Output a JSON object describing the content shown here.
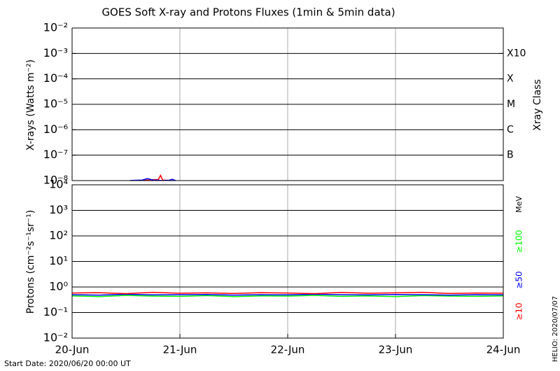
{
  "chart_data": [
    {
      "type": "line",
      "title": "GOES Soft X-ray and Protons Fluxes   (1min & 5min data)",
      "ylabel": "X-rays (Watts m⁻²)",
      "y2label": "Xray Class",
      "log_y": true,
      "grid": true,
      "ylim": [
        1e-08,
        0.01
      ],
      "yticks": [
        {
          "value": 1e-08,
          "label": "10⁻⁸"
        },
        {
          "value": 1e-07,
          "label": "10⁻⁷"
        },
        {
          "value": 1e-06,
          "label": "10⁻⁶"
        },
        {
          "value": 1e-05,
          "label": "10⁻⁵"
        },
        {
          "value": 0.0001,
          "label": "10⁻⁴"
        },
        {
          "value": 0.001,
          "label": "10⁻³"
        },
        {
          "value": 0.01,
          "label": "10⁻²"
        }
      ],
      "class_ticks": [
        {
          "value": 1e-07,
          "label": "B"
        },
        {
          "value": 1e-06,
          "label": "C"
        },
        {
          "value": 1e-05,
          "label": "M"
        },
        {
          "value": 0.0001,
          "label": "X"
        },
        {
          "value": 0.001,
          "label": "X10"
        }
      ],
      "xlim": [
        0,
        4
      ],
      "x": [
        0.4,
        0.5,
        0.55,
        0.6,
        0.65,
        0.7,
        0.75,
        0.8,
        0.82,
        0.84,
        0.9,
        0.93,
        0.96,
        1.02
      ],
      "series": [
        {
          "color": "#ff0000",
          "values": [
            9e-09,
            9.2e-09,
            9.5e-09,
            9.8e-09,
            1.02e-08,
            1.05e-08,
            1.08e-08,
            1.1e-08,
            1.6e-08,
            1.05e-08,
            1.02e-08,
            1e-08,
            9.6e-09,
            9e-09
          ]
        },
        {
          "color": "#0000ff",
          "values": [
            8e-09,
            9.5e-09,
            1.02e-08,
            1.03e-08,
            1.05e-08,
            1.2e-08,
            1.05e-08,
            1.03e-08,
            1.02e-08,
            1e-08,
            1.03e-08,
            1.12e-08,
            1e-08,
            8e-09
          ]
        }
      ]
    },
    {
      "type": "line",
      "ylabel": "Protons (cm⁻²s⁻¹sr⁻¹)",
      "unit_label": "MeV",
      "log_y": true,
      "grid": true,
      "ylim": [
        0.01,
        10000
      ],
      "yticks": [
        {
          "value": 0.01,
          "label": "10⁻²"
        },
        {
          "value": 0.1,
          "label": "10⁻¹"
        },
        {
          "value": 1,
          "label": "10⁰"
        },
        {
          "value": 10,
          "label": "10¹"
        },
        {
          "value": 100,
          "label": "10²"
        },
        {
          "value": 1000,
          "label": "10³"
        },
        {
          "value": 10000,
          "label": "10⁴"
        }
      ],
      "threshold": 10,
      "xlim": [
        0,
        4
      ],
      "xticks": [
        {
          "value": 0,
          "label": "20-Jun"
        },
        {
          "value": 1,
          "label": "21-Jun"
        },
        {
          "value": 2,
          "label": "22-Jun"
        },
        {
          "value": 3,
          "label": "23-Jun"
        },
        {
          "value": 4,
          "label": "24-Jun"
        }
      ],
      "x": [
        0,
        0.25,
        0.5,
        0.75,
        1,
        1.25,
        1.5,
        1.75,
        2,
        2.25,
        2.5,
        2.75,
        3,
        3.25,
        3.5,
        3.75,
        4
      ],
      "series": [
        {
          "name": "≥100",
          "color": "#00ff00",
          "values": [
            0.45,
            0.42,
            0.47,
            0.44,
            0.43,
            0.46,
            0.42,
            0.45,
            0.44,
            0.47,
            0.43,
            0.45,
            0.42,
            0.46,
            0.44,
            0.43,
            0.45
          ]
        },
        {
          "name": "≥50",
          "color": "#0000ff",
          "values": [
            0.5,
            0.48,
            0.52,
            0.49,
            0.5,
            0.51,
            0.48,
            0.5,
            0.49,
            0.52,
            0.5,
            0.49,
            0.51,
            0.5,
            0.48,
            0.5,
            0.49
          ]
        },
        {
          "name": "≥10",
          "color": "#ff0000",
          "values": [
            0.58,
            0.6,
            0.55,
            0.62,
            0.57,
            0.59,
            0.56,
            0.6,
            0.58,
            0.55,
            0.61,
            0.57,
            0.59,
            0.62,
            0.56,
            0.58,
            0.57
          ]
        }
      ]
    }
  ],
  "footer": {
    "start_date": "Start Date: 2020/06/20 00:00 UT",
    "credit": "HELIO: 2020/07/07"
  }
}
